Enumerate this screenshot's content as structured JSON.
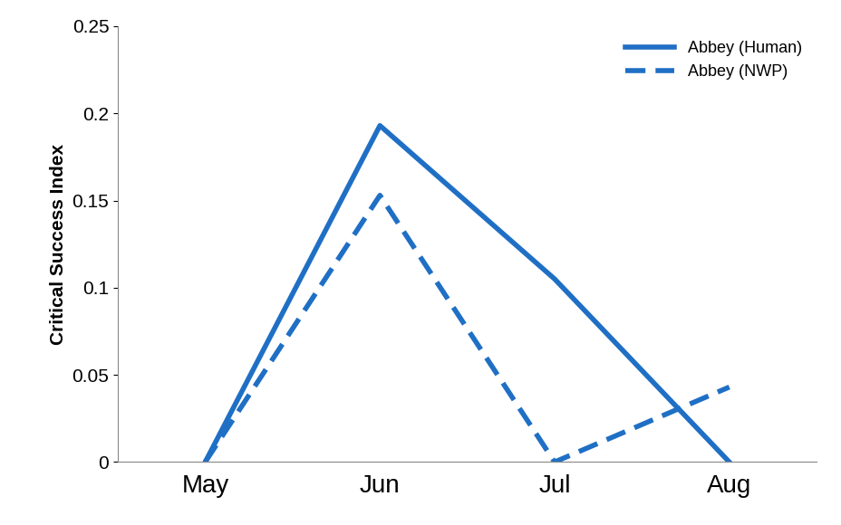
{
  "chart_data": {
    "type": "line",
    "categories": [
      "May",
      "Jun",
      "Jul",
      "Aug"
    ],
    "y_label": "Critical Success Index",
    "series": [
      {
        "name": "Abbey (Human)",
        "color": "#1f6fc5",
        "line_style": "solid",
        "values": [
          0,
          0.193,
          0.105,
          0
        ]
      },
      {
        "name": "Abbey (NWP)",
        "color": "#1f6fc5",
        "line_style": "dashed",
        "values": [
          0,
          0.153,
          0,
          0.043
        ]
      }
    ],
    "ylim": [
      0,
      0.25
    ],
    "yticks": [
      0,
      0.05,
      0.1,
      0.15,
      0.2,
      0.25
    ],
    "grid": false,
    "legend": "upper right"
  }
}
